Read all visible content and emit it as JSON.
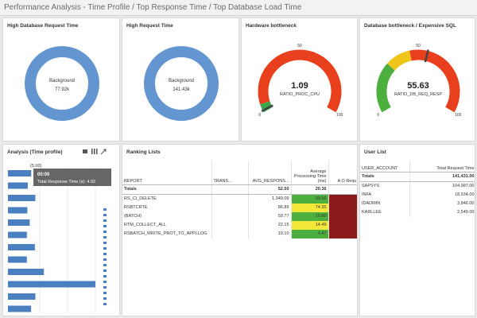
{
  "header": {
    "title": "Performance Analysis - Time Profile / Top Response Time / Top Database Load Time"
  },
  "donuts": [
    {
      "title": "High Database Request Time",
      "label": "Background",
      "value": "77.92k",
      "color": "#6396d0"
    },
    {
      "title": "High Request Time",
      "label": "Background",
      "value": "141.43k",
      "color": "#6396d0"
    }
  ],
  "gauges": [
    {
      "title": "Hardware bottleneck",
      "value": 1.09,
      "label": "RATIO_PROC_CPU",
      "min": 0,
      "mid": 50,
      "max": 100,
      "bands": [
        {
          "to": 5,
          "color": "#3aa84a"
        },
        {
          "to": 100,
          "color": "#e8401c"
        }
      ]
    },
    {
      "title": "Database bottleneck / Expensive SQL",
      "value": 55.63,
      "label": "RATIO_DB_REQ_RESP",
      "min": 0,
      "mid": 50,
      "max": 100,
      "bands": [
        {
          "to": 30,
          "color": "#4caf3e"
        },
        {
          "to": 45,
          "color": "#f0c419"
        },
        {
          "to": 100,
          "color": "#e8401c"
        }
      ]
    }
  ],
  "analysis": {
    "title": "Analysis (Time profile)",
    "top_label": "(5.00)",
    "tooltip_time": "00:00",
    "tooltip_text": "Total Response Time (s): 4.92",
    "color": "#4a7fc0",
    "values": [
      4.92,
      4.2,
      5.8,
      4.1,
      4.6,
      4.0,
      5.7,
      4.0,
      7.6,
      18.5,
      5.8,
      4.9
    ]
  },
  "ranking": {
    "title": "Ranking Lists",
    "headers": [
      "REPORT",
      "TRANS...",
      "AVG_RESPONS...",
      "Average Processing Time (ms)",
      "A O Requ"
    ],
    "totals": [
      "Totals",
      "52.50",
      "20.36"
    ],
    "rows": [
      {
        "report": "RS_CI_DELETE",
        "avg": "1,349.09",
        "proc": "33.56",
        "color": "#4caf3e"
      },
      {
        "report": "RSBTCRTE",
        "avg": "86.89",
        "proc": "74.35",
        "color": "#f4e93b"
      },
      {
        "report": "(BATCH)",
        "avg": "59.77",
        "proc": "10.80",
        "color": "#4caf3e"
      },
      {
        "report": "RTM_COLLECT_ALL",
        "avg": "22.15",
        "proc": "14.49",
        "color": "#f4e93b"
      },
      {
        "report": "RSBATCH_WRITE_PROT_TO_APPLLOG",
        "avg": "19.10",
        "proc": "4.47",
        "color": "#4caf3e"
      }
    ]
  },
  "users": {
    "title": "User List",
    "headers": [
      "USER_ACCOUNT",
      "Total Request Time"
    ],
    "totals": [
      "Totals",
      "141,431.00"
    ],
    "rows": [
      [
        "SAPSYS",
        "104,987.00"
      ],
      [
        "INFA",
        "18,934.00"
      ],
      [
        "IDADMIN",
        "3,846.00"
      ],
      [
        "KARLLEE",
        "2,549.00"
      ]
    ]
  }
}
